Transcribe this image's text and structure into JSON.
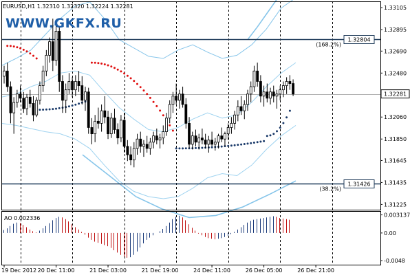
{
  "chart_data": {
    "type": "candlestick",
    "symbol_line": "EURUSD,H1  1.32310 1.32320 1.32224 1.32281",
    "watermark": "WWW.GKFX.RU",
    "colors": {
      "background": "#ffffff",
      "candle": "#000000",
      "band": "#86c5ea",
      "band_inner": "#9fd3f0",
      "psar_up": "#e01010",
      "psar_down": "#1a3a6a",
      "level": "#1f3b5a",
      "ao_up": "#1a3a7a",
      "ao_down": "#c01010",
      "axis": "#000000",
      "current_price": "#b0b0b0"
    },
    "price_axis": {
      "min": 1.31175,
      "max": 1.33165,
      "ticks": [
        "1.33105",
        "1.32895",
        "1.32690",
        "1.32480",
        "1.32281",
        "1.32060",
        "1.31850",
        "1.31645",
        "1.31435",
        "1.31225"
      ],
      "tick_values": [
        1.33105,
        1.32895,
        1.3269,
        1.3248,
        1.32281,
        1.3206,
        1.3185,
        1.31645,
        1.31435,
        1.31225
      ]
    },
    "current_price": {
      "value": 1.32281,
      "label": "1.32281"
    },
    "levels": [
      {
        "value": 1.32804,
        "label": "1.32804",
        "pct": "(168.2%)"
      },
      {
        "value": 1.31426,
        "label": "1.31426",
        "pct": "(38.2%)"
      }
    ],
    "x_axis": {
      "labels": [
        "19 Dec 2012",
        "20 Dec 11:00",
        "21 Dec 03:00",
        "21 Dec 19:00",
        "24 Dec 11:00",
        "26 Dec 05:00",
        "26 Dec 21:00"
      ],
      "label_index": [
        0,
        16,
        32,
        48,
        64,
        80,
        96
      ],
      "session_breaks": [
        5,
        21,
        37,
        53,
        69,
        85,
        101,
        122
      ]
    },
    "candles": [
      [
        1.3245,
        1.3255,
        1.3238,
        1.325
      ],
      [
        1.325,
        1.3258,
        1.323,
        1.3235
      ],
      [
        1.3235,
        1.324,
        1.32,
        1.321
      ],
      [
        1.321,
        1.3225,
        1.319,
        1.322
      ],
      [
        1.322,
        1.3232,
        1.3215,
        1.3228
      ],
      [
        1.3228,
        1.3236,
        1.322,
        1.3224
      ],
      [
        1.3224,
        1.323,
        1.321,
        1.3214
      ],
      [
        1.3214,
        1.3228,
        1.3208,
        1.3225
      ],
      [
        1.3225,
        1.3232,
        1.3215,
        1.3219
      ],
      [
        1.3219,
        1.3226,
        1.3202,
        1.3208
      ],
      [
        1.3208,
        1.3225,
        1.3206,
        1.3222
      ],
      [
        1.3222,
        1.324,
        1.3218,
        1.3236
      ],
      [
        1.3236,
        1.3255,
        1.323,
        1.325
      ],
      [
        1.325,
        1.327,
        1.3245,
        1.3265
      ],
      [
        1.3265,
        1.3282,
        1.3258,
        1.3278
      ],
      [
        1.3278,
        1.33,
        1.325,
        1.326
      ],
      [
        1.326,
        1.3295,
        1.3255,
        1.3288
      ],
      [
        1.3288,
        1.3292,
        1.323,
        1.324
      ],
      [
        1.324,
        1.3246,
        1.321,
        1.3222
      ],
      [
        1.3222,
        1.3238,
        1.321,
        1.3232
      ],
      [
        1.3232,
        1.3248,
        1.3228,
        1.324
      ],
      [
        1.324,
        1.3244,
        1.3225,
        1.3232
      ],
      [
        1.3232,
        1.3246,
        1.3226,
        1.324
      ],
      [
        1.324,
        1.325,
        1.323,
        1.3236
      ],
      [
        1.3236,
        1.3245,
        1.3218,
        1.3222
      ],
      [
        1.3222,
        1.3235,
        1.3212,
        1.323
      ],
      [
        1.323,
        1.3234,
        1.319,
        1.3196
      ],
      [
        1.3196,
        1.3205,
        1.318,
        1.319
      ],
      [
        1.319,
        1.3208,
        1.3182,
        1.3202
      ],
      [
        1.3202,
        1.3215,
        1.3195,
        1.32
      ],
      [
        1.32,
        1.3218,
        1.3192,
        1.3212
      ],
      [
        1.3212,
        1.3226,
        1.32,
        1.3206
      ],
      [
        1.3206,
        1.3212,
        1.3185,
        1.319
      ],
      [
        1.319,
        1.321,
        1.3186,
        1.3205
      ],
      [
        1.3205,
        1.3214,
        1.319,
        1.3194
      ],
      [
        1.3194,
        1.32,
        1.318,
        1.3186
      ],
      [
        1.3186,
        1.3208,
        1.3182,
        1.3203
      ],
      [
        1.3203,
        1.321,
        1.3172,
        1.3178
      ],
      [
        1.3178,
        1.3184,
        1.3164,
        1.317
      ],
      [
        1.317,
        1.3178,
        1.316,
        1.3165
      ],
      [
        1.3165,
        1.3182,
        1.3158,
        1.3176
      ],
      [
        1.3176,
        1.319,
        1.317,
        1.3185
      ],
      [
        1.3185,
        1.3192,
        1.3172,
        1.3178
      ],
      [
        1.3178,
        1.3184,
        1.3168,
        1.318
      ],
      [
        1.318,
        1.3188,
        1.3172,
        1.3176
      ],
      [
        1.3176,
        1.3186,
        1.317,
        1.3182
      ],
      [
        1.3182,
        1.3192,
        1.3176,
        1.3188
      ],
      [
        1.3188,
        1.3195,
        1.318,
        1.3184
      ],
      [
        1.3184,
        1.319,
        1.3176,
        1.3186
      ],
      [
        1.3186,
        1.3198,
        1.318,
        1.3192
      ],
      [
        1.3192,
        1.321,
        1.3188,
        1.3205
      ],
      [
        1.3205,
        1.3222,
        1.32,
        1.3218
      ],
      [
        1.3218,
        1.323,
        1.321,
        1.3226
      ],
      [
        1.3226,
        1.3238,
        1.3218,
        1.3222
      ],
      [
        1.3222,
        1.3232,
        1.3214,
        1.3228
      ],
      [
        1.3228,
        1.3235,
        1.3215,
        1.3218
      ],
      [
        1.3218,
        1.3224,
        1.3195,
        1.32
      ],
      [
        1.32,
        1.3206,
        1.3176,
        1.318
      ],
      [
        1.318,
        1.3192,
        1.3175,
        1.3188
      ],
      [
        1.3188,
        1.3194,
        1.3178,
        1.3182
      ],
      [
        1.3182,
        1.319,
        1.3175,
        1.3186
      ],
      [
        1.3186,
        1.3195,
        1.318,
        1.3184
      ],
      [
        1.3184,
        1.319,
        1.3176,
        1.318
      ],
      [
        1.318,
        1.3188,
        1.3172,
        1.3184
      ],
      [
        1.3184,
        1.3192,
        1.3178,
        1.318
      ],
      [
        1.318,
        1.3186,
        1.3174,
        1.3182
      ],
      [
        1.3182,
        1.319,
        1.3176,
        1.3188
      ],
      [
        1.3188,
        1.3196,
        1.3182,
        1.3185
      ],
      [
        1.3185,
        1.3192,
        1.3178,
        1.319
      ],
      [
        1.319,
        1.32,
        1.3184,
        1.3196
      ],
      [
        1.3196,
        1.3206,
        1.319,
        1.32
      ],
      [
        1.32,
        1.3212,
        1.3194,
        1.3208
      ],
      [
        1.3208,
        1.3222,
        1.3202,
        1.3216
      ],
      [
        1.3216,
        1.3226,
        1.3208,
        1.3212
      ],
      [
        1.3212,
        1.3222,
        1.3204,
        1.3218
      ],
      [
        1.3218,
        1.3232,
        1.3212,
        1.3228
      ],
      [
        1.3228,
        1.324,
        1.322,
        1.3235
      ],
      [
        1.3235,
        1.3255,
        1.323,
        1.325
      ],
      [
        1.325,
        1.3258,
        1.3235,
        1.324
      ],
      [
        1.324,
        1.3246,
        1.322,
        1.3226
      ],
      [
        1.3226,
        1.3236,
        1.3216,
        1.323
      ],
      [
        1.323,
        1.3238,
        1.322,
        1.3224
      ],
      [
        1.3224,
        1.3234,
        1.3218,
        1.323
      ],
      [
        1.323,
        1.3236,
        1.322,
        1.3226
      ],
      [
        1.3226,
        1.3232,
        1.3214,
        1.3228
      ],
      [
        1.3228,
        1.3236,
        1.3222,
        1.3232
      ],
      [
        1.3232,
        1.324,
        1.3225,
        1.3236
      ],
      [
        1.3236,
        1.3244,
        1.3228,
        1.324
      ],
      [
        1.324,
        1.3246,
        1.3232,
        1.3238
      ],
      [
        1.3238,
        1.3242,
        1.3226,
        1.3228
      ]
    ],
    "psar": [
      {
        "from": 1,
        "to": 10,
        "start": 1.3274,
        "end": 1.3262,
        "type": "up"
      },
      {
        "from": 11,
        "to": 26,
        "start": 1.3213,
        "end": 1.3222,
        "type": "down"
      },
      {
        "from": 27,
        "to": 52,
        "start": 1.3258,
        "end": 1.3193,
        "type": "up"
      },
      {
        "from": 53,
        "to": 80,
        "start": 1.3176,
        "end": 1.3183,
        "type": "down"
      },
      {
        "from": 81,
        "to": 88,
        "start": 1.3188,
        "end": 1.3212,
        "type": "down"
      }
    ],
    "bollinger": {
      "upper": [
        1.3255,
        1.3262,
        1.327,
        1.3285,
        1.33,
        1.3312,
        1.3316,
        1.33,
        1.328,
        1.3272,
        1.3264,
        1.3262,
        1.327,
        1.3275,
        1.3268,
        1.3262,
        1.3265,
        1.3275,
        1.329,
        1.331,
        1.332
      ],
      "middle": [
        1.3225,
        1.3228,
        1.3235,
        1.324,
        1.3248,
        1.325,
        1.3246,
        1.323,
        1.3215,
        1.3204,
        1.3194,
        1.3192,
        1.3196,
        1.3204,
        1.321,
        1.3205,
        1.3208,
        1.322,
        1.3235,
        1.3248,
        1.3258
      ],
      "lower": [
        1.32,
        1.3198,
        1.3195,
        1.3192,
        1.319,
        1.3185,
        1.3176,
        1.316,
        1.3145,
        1.3135,
        1.313,
        1.3128,
        1.313,
        1.3138,
        1.3148,
        1.3152,
        1.315,
        1.316,
        1.3175,
        1.3188,
        1.3198
      ],
      "outer_upper": [
        1.328,
        1.3292,
        1.3305,
        1.3318,
        1.333,
        1.3345
      ],
      "outer_lower": [
        1.317,
        1.315,
        1.313,
        1.3118,
        1.311,
        1.3112,
        1.312,
        1.3132,
        1.3145
      ]
    },
    "ao": {
      "label": "AO 0.002336",
      "ticks": [
        "0.003137",
        "0.00",
        "-0.0048"
      ],
      "tick_values": [
        0.003137,
        0.0,
        -0.0048
      ],
      "min": -0.0055,
      "max": 0.0038,
      "values": [
        0.0005,
        0.0008,
        0.0012,
        0.0016,
        0.0018,
        0.0017,
        0.0014,
        0.001,
        0.0006,
        0.0003,
        0.0001,
        0.0004,
        0.0008,
        0.0012,
        0.0017,
        0.0022,
        0.0026,
        0.0028,
        0.0027,
        0.0024,
        0.002,
        0.0015,
        0.001,
        0.0006,
        0.0002,
        -0.0003,
        -0.0008,
        -0.0012,
        -0.0015,
        -0.0017,
        -0.0019,
        -0.0021,
        -0.0023,
        -0.0026,
        -0.003,
        -0.0034,
        -0.0038,
        -0.0041,
        -0.0043,
        -0.0042,
        -0.0038,
        -0.0032,
        -0.0025,
        -0.0018,
        -0.0012,
        -0.0008,
        -0.0004,
        0.0,
        0.0003,
        0.0007,
        0.0012,
        0.0018,
        0.0024,
        0.0028,
        0.003,
        0.0027,
        0.0022,
        0.0015,
        0.0009,
        0.0004,
        -0.0001,
        -0.0004,
        -0.0007,
        -0.0009,
        -0.001,
        -0.0011,
        -0.001,
        -0.0009,
        -0.0007,
        -0.0005,
        -0.0002,
        0.0002,
        0.0006,
        0.001,
        0.0014,
        0.0018,
        0.0021,
        0.0023,
        0.0024,
        0.0025,
        0.0026,
        0.0027,
        0.0028,
        0.0029,
        0.0028,
        0.0026,
        0.0025,
        0.0024,
        0.0023
      ]
    }
  }
}
